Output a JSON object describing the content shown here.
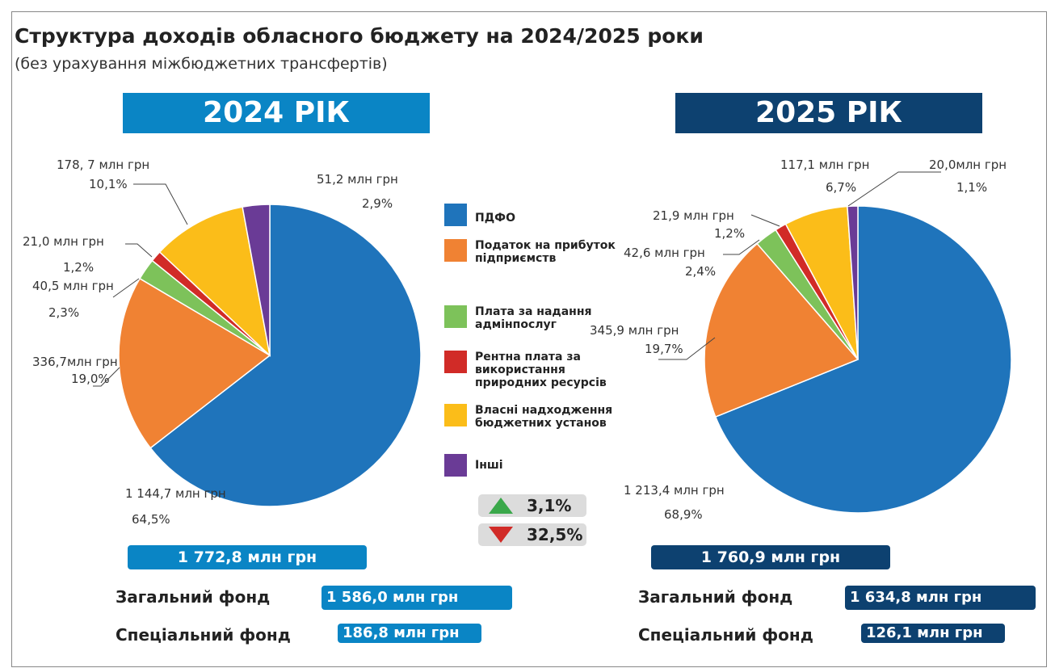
{
  "title": "Структура доходів обласного бюджету на 2024/2025 роки",
  "subtitle": "(без урахування міжбюджетних трансфертів)",
  "categories": [
    "ПДФО",
    "Податок на прибуток підприємств",
    "Плата за надання адмінпослуг",
    "Рентна плата за використання природних ресурсів",
    "Власні надходження бюджетних установ",
    "Інші"
  ],
  "colors": [
    "#1f74bb",
    "#f08233",
    "#7dc25a",
    "#d12b27",
    "#fbbd19",
    "#6a3b96"
  ],
  "chart_data": [
    {
      "type": "pie",
      "title": "2024 РІК",
      "header_color": "#0a85c5",
      "values": [
        64.5,
        19.0,
        2.3,
        1.2,
        10.1,
        2.9
      ],
      "value_labels": [
        "64,5%",
        "19,0%",
        "2,3%",
        "1,2%",
        "10,1%",
        "2,9%"
      ],
      "amounts": [
        1144.7,
        336.7,
        40.5,
        21.0,
        178.7,
        51.2
      ],
      "amount_labels": [
        "1 144,7 млн грн",
        "336,7млн грн",
        "40,5 млн грн",
        "21,0 млн грн",
        "178, 7 млн грн",
        "51,2 млн грн"
      ],
      "total": 1772.8,
      "total_label": "1 772,8 млн грн",
      "funds": [
        {
          "name": "Загальний фонд",
          "value": 1586.0,
          "label": "1 586,0 млн грн"
        },
        {
          "name": "Спеціальний фонд",
          "value": 186.8,
          "label": "186,8 млн грн"
        }
      ]
    },
    {
      "type": "pie",
      "title": "2025 РІК",
      "header_color": "#0d4170",
      "values": [
        68.9,
        19.7,
        2.4,
        1.2,
        6.7,
        1.1
      ],
      "value_labels": [
        "68,9%",
        "19,7%",
        "2,4%",
        "1,2%",
        "6,7%",
        "1,1%"
      ],
      "amounts": [
        1213.4,
        345.9,
        42.6,
        21.9,
        117.1,
        20.0
      ],
      "amount_labels": [
        "1 213,4 млн грн",
        "345,9 млн грн",
        "42,6 млн грн",
        "21,9 млн грн",
        "117,1 млн грн",
        "20,0млн грн"
      ],
      "total": 1760.9,
      "total_label": "1 760,9 млн грн",
      "funds": [
        {
          "name": "Загальний фонд",
          "value": 1634.8,
          "label": "1 634,8 млн грн"
        },
        {
          "name": "Спеціальний фонд",
          "value": 126.1,
          "label": "126,1 млн грн"
        }
      ]
    }
  ],
  "changes": [
    {
      "value": 3.1,
      "label": "3,1%",
      "direction": "up",
      "color": "#3aa84a"
    },
    {
      "value": 32.5,
      "label": "32,5%",
      "direction": "down",
      "color": "#d12b27"
    }
  ]
}
